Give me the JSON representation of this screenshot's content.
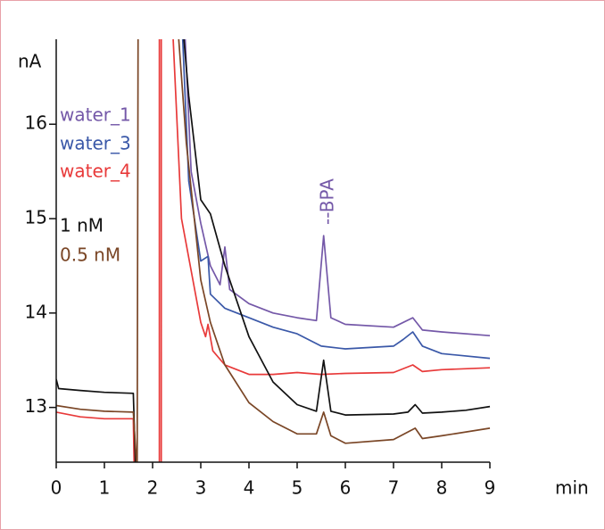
{
  "chart_data": {
    "type": "line",
    "xlabel": "min",
    "ylabel": "nA",
    "annotation": "--BPA",
    "xlim": [
      0,
      9
    ],
    "xticks": [
      0,
      1,
      2,
      3,
      4,
      5,
      6,
      7,
      8,
      9
    ],
    "ylim": [
      12.42,
      16.9
    ],
    "yticks": [
      13,
      14,
      15,
      16
    ],
    "series": [
      {
        "name": "water_1",
        "color": "#7458a8",
        "x": [
          2.65,
          2.8,
          3,
          3.2,
          3.4,
          3.5,
          3.6,
          4,
          4.5,
          5,
          5.4,
          5.55,
          5.7,
          6,
          7,
          7.4,
          7.6,
          8,
          9
        ],
        "values": [
          17.2,
          15.5,
          14.95,
          14.5,
          14.3,
          14.7,
          14.25,
          14.1,
          14.0,
          13.95,
          13.92,
          14.82,
          13.95,
          13.88,
          13.85,
          13.95,
          13.82,
          13.8,
          13.76
        ]
      },
      {
        "name": "water_3",
        "color": "#3a58a8",
        "x": [
          2.6,
          2.75,
          3,
          3.15,
          3.2,
          3.5,
          4,
          4.5,
          5,
          5.5,
          6,
          7,
          7.2,
          7.4,
          7.6,
          8,
          9
        ],
        "values": [
          17.2,
          15.4,
          14.55,
          14.6,
          14.2,
          14.05,
          13.95,
          13.85,
          13.78,
          13.65,
          13.62,
          13.65,
          13.72,
          13.8,
          13.65,
          13.57,
          13.52
        ]
      },
      {
        "name": "water_4",
        "color": "#e83a3a",
        "x": [
          0,
          0.5,
          1,
          1.6,
          1.62,
          1.9,
          2.14,
          2.14,
          2.18,
          2.18,
          2.3,
          2.4,
          2.6,
          3,
          3.1,
          3.15,
          3.25,
          3.5,
          4,
          4.5,
          5,
          5.5,
          6,
          7,
          7.4,
          7.6,
          8,
          9
        ],
        "values": [
          12.95,
          12.9,
          12.88,
          12.88,
          12.3,
          null,
          12.3,
          17.2,
          17.2,
          12.3,
          null,
          17.2,
          15.0,
          13.9,
          13.75,
          13.88,
          13.6,
          13.45,
          13.35,
          13.35,
          13.37,
          13.35,
          13.36,
          13.37,
          13.45,
          13.38,
          13.4,
          13.42
        ]
      },
      {
        "name": "1 nM",
        "color": "#111111",
        "x": [
          0,
          0.05,
          0.5,
          1,
          1.6,
          1.65,
          2.0,
          2.6,
          2.75,
          3,
          3.2,
          3.5,
          4,
          4.5,
          5,
          5.4,
          5.55,
          5.7,
          6,
          7,
          7.3,
          7.45,
          7.6,
          8,
          8.5,
          9
        ],
        "values": [
          13.3,
          13.2,
          13.18,
          13.16,
          13.15,
          12.3,
          null,
          17.2,
          16.3,
          15.2,
          15.05,
          14.5,
          13.75,
          13.27,
          13.03,
          12.96,
          13.5,
          12.96,
          12.92,
          12.93,
          12.95,
          13.03,
          12.94,
          12.95,
          12.97,
          13.01
        ]
      },
      {
        "name": "0.5 nM",
        "color": "#7a4626",
        "x": [
          0,
          0.5,
          1,
          1.6,
          1.68,
          1.7,
          1.72,
          2.5,
          2.7,
          3,
          3.2,
          3.5,
          4,
          4.5,
          5,
          5.4,
          5.55,
          5.7,
          6,
          7,
          7.45,
          7.6,
          8,
          9
        ],
        "values": [
          13.02,
          12.98,
          12.96,
          12.95,
          12.3,
          17.2,
          null,
          17.2,
          15.8,
          14.35,
          13.9,
          13.45,
          13.05,
          12.85,
          12.72,
          12.72,
          12.95,
          12.7,
          12.62,
          12.66,
          12.78,
          12.67,
          12.7,
          12.78
        ]
      }
    ]
  }
}
